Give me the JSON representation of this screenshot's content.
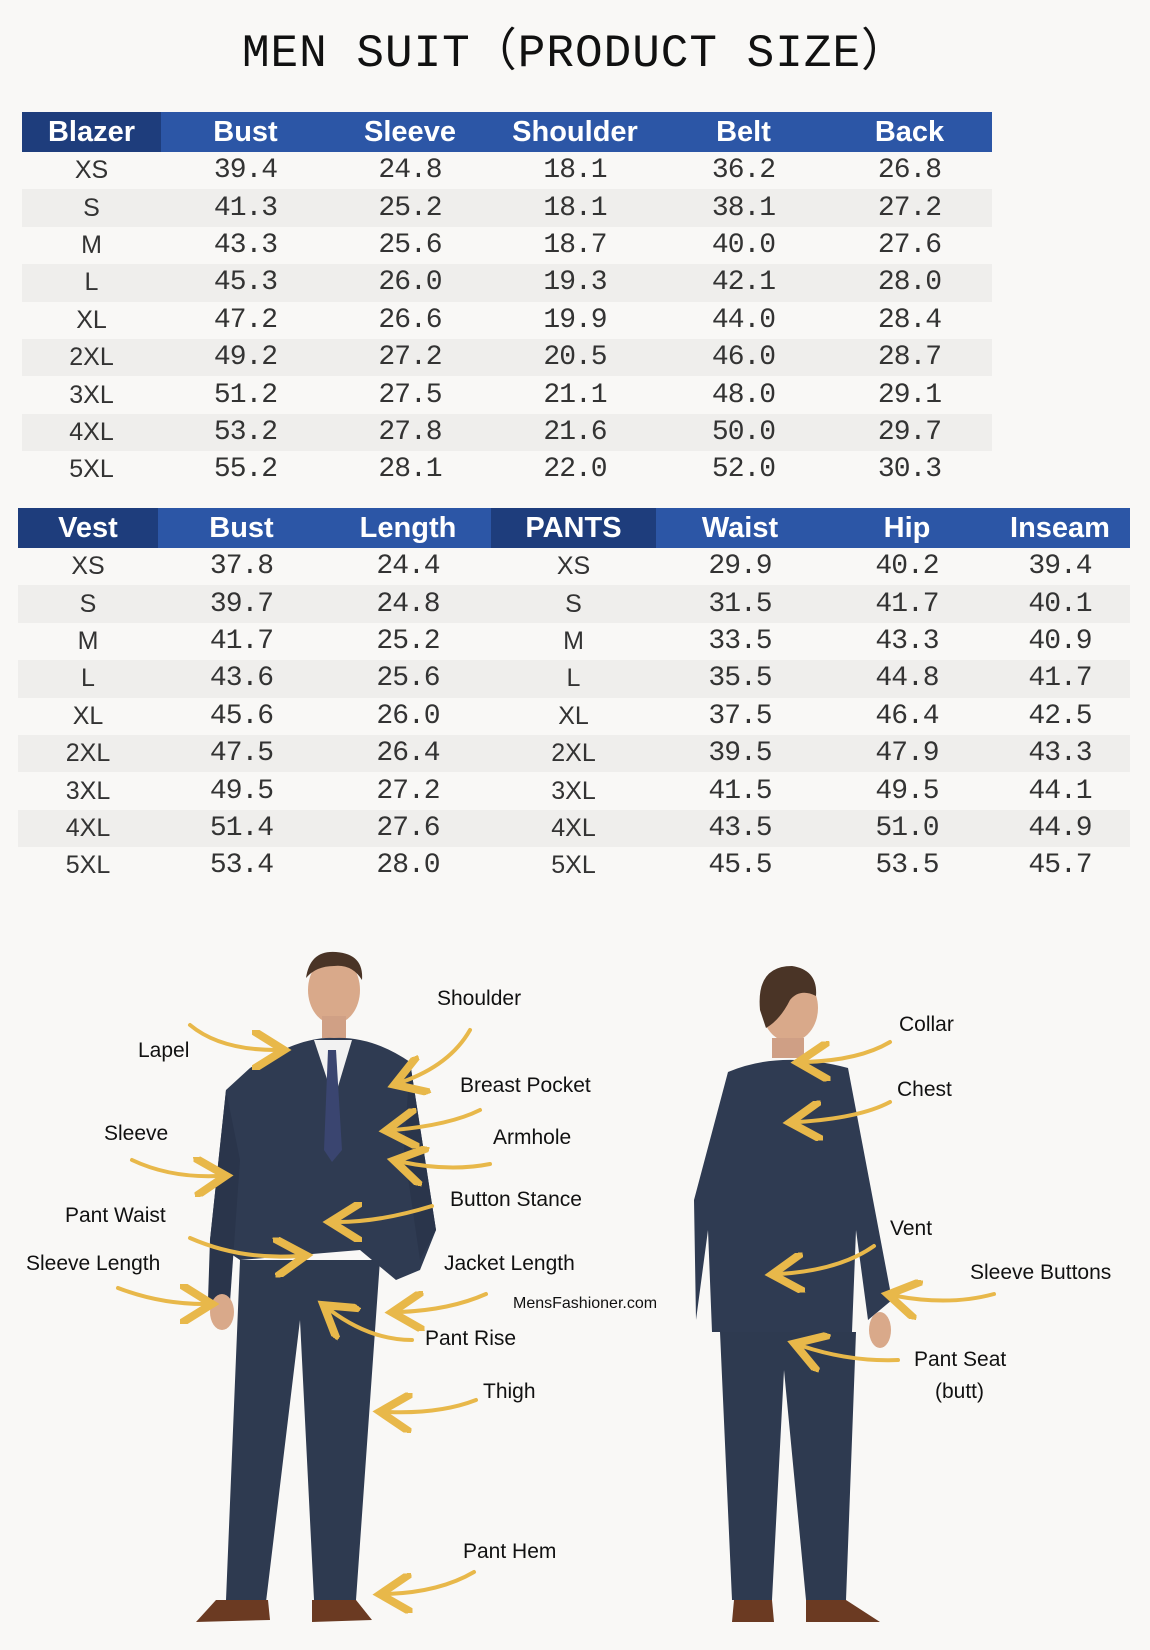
{
  "title": "MEN SUIT（PRODUCT SIZE）",
  "blazer_table": {
    "headers": [
      "Blazer",
      "Bust",
      "Sleeve",
      "Shoulder",
      "Belt",
      "Back"
    ],
    "rows": [
      [
        "XS",
        "39.4",
        "24.8",
        "18.1",
        "36.2",
        "26.8"
      ],
      [
        "S",
        "41.3",
        "25.2",
        "18.1",
        "38.1",
        "27.2"
      ],
      [
        "M",
        "43.3",
        "25.6",
        "18.7",
        "40.0",
        "27.6"
      ],
      [
        "L",
        "45.3",
        "26.0",
        "19.3",
        "42.1",
        "28.0"
      ],
      [
        "XL",
        "47.2",
        "26.6",
        "19.9",
        "44.0",
        "28.4"
      ],
      [
        "2XL",
        "49.2",
        "27.2",
        "20.5",
        "46.0",
        "28.7"
      ],
      [
        "3XL",
        "51.2",
        "27.5",
        "21.1",
        "48.0",
        "29.1"
      ],
      [
        "4XL",
        "53.2",
        "27.8",
        "21.6",
        "50.0",
        "29.7"
      ],
      [
        "5XL",
        "55.2",
        "28.1",
        "22.0",
        "52.0",
        "30.3"
      ]
    ]
  },
  "vest_pants_table": {
    "headers": [
      "Vest",
      "Bust",
      "Length",
      "PANTS",
      "Waist",
      "Hip",
      "Inseam"
    ],
    "rows": [
      [
        "XS",
        "37.8",
        "24.4",
        "XS",
        "29.9",
        "40.2",
        "39.4"
      ],
      [
        "S",
        "39.7",
        "24.8",
        "S",
        "31.5",
        "41.7",
        "40.1"
      ],
      [
        "M",
        "41.7",
        "25.2",
        "M",
        "33.5",
        "43.3",
        "40.9"
      ],
      [
        "L",
        "43.6",
        "25.6",
        "L",
        "35.5",
        "44.8",
        "41.7"
      ],
      [
        "XL",
        "45.6",
        "26.0",
        "XL",
        "37.5",
        "46.4",
        "42.5"
      ],
      [
        "2XL",
        "47.5",
        "26.4",
        "2XL",
        "39.5",
        "47.9",
        "43.3"
      ],
      [
        "3XL",
        "49.5",
        "27.2",
        "3XL",
        "41.5",
        "49.5",
        "44.1"
      ],
      [
        "4XL",
        "51.4",
        "27.6",
        "4XL",
        "43.5",
        "51.0",
        "44.9"
      ],
      [
        "5XL",
        "53.4",
        "28.0",
        "5XL",
        "45.5",
        "53.5",
        "45.7"
      ]
    ]
  },
  "front_labels": [
    "Shoulder",
    "Lapel",
    "Breast Pocket",
    "Sleeve",
    "Armhole",
    "Button Stance",
    "Pant Waist",
    "Sleeve Length",
    "Jacket Length",
    "Pant Rise",
    "Thigh",
    "Pant Hem"
  ],
  "back_labels": [
    "Collar",
    "Chest",
    "Vent",
    "Sleeve Buttons",
    "Pant Seat",
    "(butt)"
  ],
  "watermark": "MensFashioner.com",
  "colors": {
    "header_blue": "#2c56a6",
    "header_dark": "#1e3d7c",
    "stripe": "#efeeec",
    "arrow": "#e8b84a",
    "suit": "#2f3b52"
  }
}
